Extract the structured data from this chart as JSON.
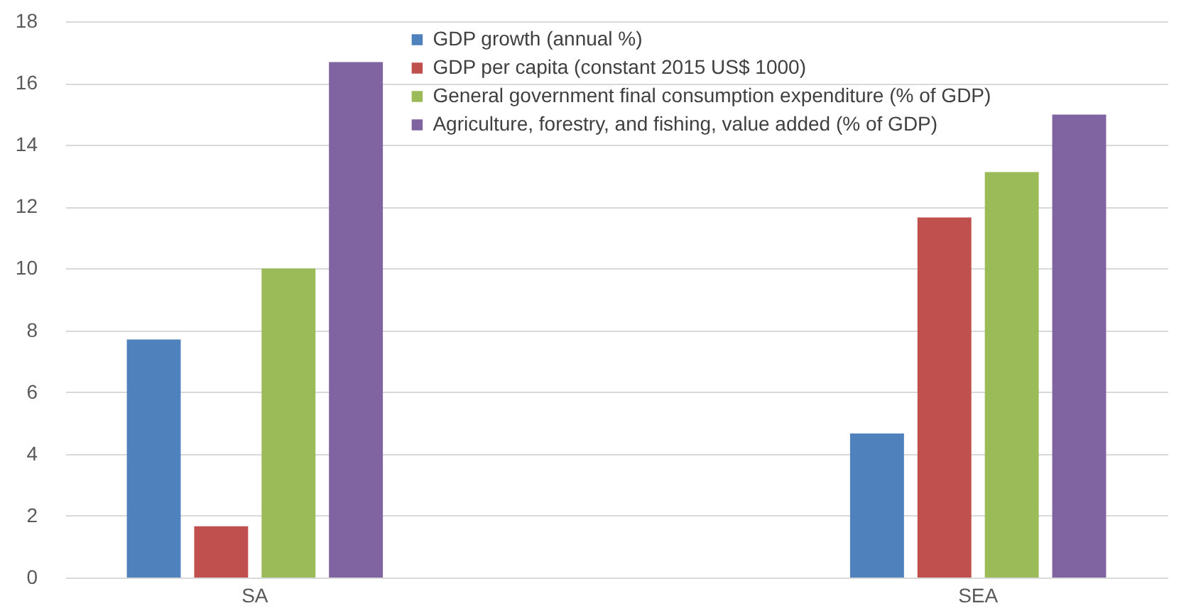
{
  "chart_data": {
    "type": "bar",
    "categories": [
      "SA",
      "SEA"
    ],
    "series": [
      {
        "name": "GDP growth (annual %)",
        "color": "#4f81bd",
        "values": [
          7.7,
          4.66
        ]
      },
      {
        "name": "GDP per capita (constant 2015 US$ 1000)",
        "color": "#c0504d",
        "values": [
          1.66,
          11.65
        ]
      },
      {
        "name": "General government final consumption expenditure (% of GDP)",
        "color": "#9bbb59",
        "values": [
          10.0,
          13.12
        ]
      },
      {
        "name": "Agriculture, forestry, and fishing, value added (% of GDP)",
        "color": "#8064a2",
        "values": [
          16.68,
          14.98
        ]
      }
    ],
    "ylim": [
      0,
      18
    ],
    "yticks": [
      0,
      2,
      4,
      6,
      8,
      10,
      12,
      14,
      16,
      18
    ],
    "grid": "y",
    "legend": "top"
  }
}
